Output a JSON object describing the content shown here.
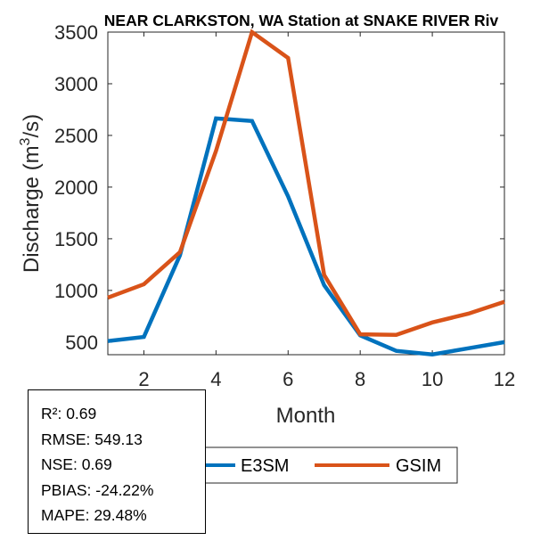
{
  "chart_data": {
    "type": "line",
    "title": "NEAR CLARKSTON, WA  Station at  SNAKE RIVER  Riv",
    "xlabel": "Month",
    "ylabel_main": "Discharge (m",
    "ylabel_sup": "3",
    "ylabel_end": "/s)",
    "x": [
      1,
      2,
      3,
      4,
      5,
      6,
      7,
      8,
      9,
      10,
      11,
      12
    ],
    "xlim": [
      1,
      12
    ],
    "ylim": [
      378,
      3500
    ],
    "xticks": [
      2,
      4,
      6,
      8,
      10,
      12
    ],
    "xtick_labels": [
      "2",
      "4",
      "6",
      "8",
      "10",
      "12"
    ],
    "yticks": [
      500,
      1000,
      1500,
      2000,
      2500,
      3000,
      3500
    ],
    "ytick_labels": [
      "500",
      "1000",
      "1500",
      "2000",
      "2500",
      "3000",
      "3500"
    ],
    "grid": false,
    "legend_placement": "bottom-center, outside",
    "series": [
      {
        "name": "E3SM",
        "color": "#0072BD",
        "values": [
          510,
          550,
          1340,
          2665,
          2640,
          1910,
          1050,
          565,
          415,
          380,
          440,
          500
        ]
      },
      {
        "name": "GSIM",
        "color": "#D95319",
        "values": [
          930,
          1060,
          1370,
          2350,
          3500,
          3250,
          1150,
          575,
          570,
          690,
          775,
          890
        ]
      }
    ]
  },
  "stats": {
    "lines": [
      "R²: 0.69",
      "RMSE: 549.13",
      "NSE: 0.69",
      "PBIAS: -24.22%",
      "MAPE: 29.48%"
    ]
  }
}
